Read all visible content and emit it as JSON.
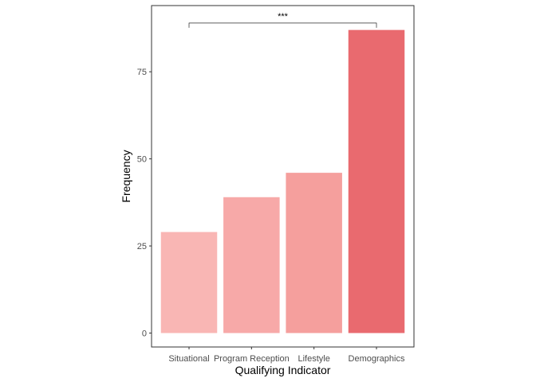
{
  "chart_data": {
    "type": "bar",
    "categories": [
      "Situational",
      "Program Reception",
      "Lifestyle",
      "Demographics"
    ],
    "values": [
      29,
      39,
      46,
      87
    ],
    "bar_colors": [
      "#F9B6B4",
      "#F7A9A8",
      "#F59F9D",
      "#E96A6F"
    ],
    "title": "",
    "xlabel": "Qualifying Indicator",
    "ylabel": "Frequency",
    "ylim": [
      -4,
      94
    ],
    "yticks": [
      0,
      25,
      50,
      75
    ],
    "grid": false,
    "legend": "none",
    "annotation": {
      "text": "***",
      "from_category": "Situational",
      "to_category": "Demographics",
      "y": 89
    }
  }
}
